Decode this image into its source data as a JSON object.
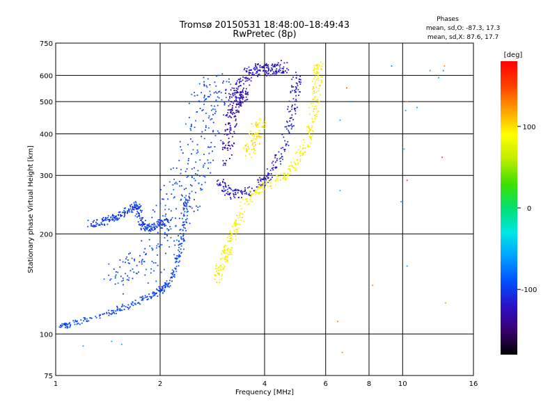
{
  "chart_data": {
    "type": "scatter",
    "title": "Tromsø 20150531 18:48:00–18:49:43",
    "subtitle": "RwPretec (8p)",
    "xlabel": "Frequency [MHz]",
    "ylabel": "Stationary phase Virtual Height [km]",
    "x_scale": "log",
    "y_scale": "log",
    "xlim": [
      1,
      16
    ],
    "ylim": [
      75,
      750
    ],
    "x_ticks": [
      1,
      2,
      4,
      6,
      8,
      10,
      16
    ],
    "x_tick_labels": [
      "1",
      "2",
      "4",
      "6",
      "8",
      "10",
      "16"
    ],
    "y_ticks": [
      75,
      100,
      200,
      300,
      400,
      500,
      600,
      750
    ],
    "y_tick_labels": [
      "75",
      "100",
      "200",
      "300",
      "400",
      "500",
      "600",
      "750"
    ],
    "grid": true,
    "phase_stats": {
      "heading": "Phases",
      "o_line": "mean, sd,O: -87.3, 17.3",
      "x_line": "mean, sd,X: 87.6, 17.7"
    },
    "colorbar": {
      "label": "[deg]",
      "range": [
        -180,
        180
      ],
      "ticks": [
        100,
        0,
        -100
      ],
      "tick_labels": [
        "100",
        "0",
        "-100"
      ],
      "colors": [
        "#000000",
        "#3a0070",
        "#2a10c8",
        "#0050ff",
        "#00a0ff",
        "#00e6e6",
        "#00e070",
        "#40e000",
        "#c0ec00",
        "#ffff00",
        "#ffa000",
        "#ff4000",
        "#ff0000"
      ]
    },
    "traces": [
      {
        "name_note": "low-frequency O trace",
        "phase": -95,
        "spread": 0.01,
        "points": [
          [
            1.03,
            105
          ],
          [
            1.1,
            107
          ],
          [
            1.3,
            112
          ],
          [
            1.5,
            118
          ],
          [
            1.7,
            124
          ],
          [
            1.9,
            130
          ],
          [
            2.0,
            135
          ],
          [
            2.1,
            140
          ],
          [
            2.2,
            155
          ],
          [
            2.3,
            180
          ],
          [
            2.35,
            220
          ],
          [
            2.4,
            260
          ]
        ]
      },
      {
        "name_note": "sporadic low trace",
        "phase": -100,
        "spread": 0.012,
        "points": [
          [
            1.25,
            215
          ],
          [
            1.35,
            216
          ],
          [
            1.45,
            222
          ],
          [
            1.55,
            228
          ],
          [
            1.65,
            238
          ],
          [
            1.72,
            245
          ],
          [
            1.75,
            220
          ],
          [
            1.8,
            210
          ],
          [
            1.9,
            208
          ],
          [
            2.0,
            215
          ],
          [
            2.1,
            218
          ]
        ]
      },
      {
        "name_note": "diffuse spread F",
        "phase": -95,
        "spread": 0.06,
        "points": [
          [
            1.4,
            145
          ],
          [
            1.6,
            150
          ],
          [
            1.8,
            160
          ],
          [
            2.0,
            180
          ],
          [
            2.1,
            210
          ],
          [
            2.2,
            240
          ],
          [
            2.3,
            260
          ],
          [
            2.4,
            290
          ],
          [
            2.5,
            320
          ],
          [
            2.6,
            380
          ],
          [
            2.7,
            440
          ],
          [
            2.8,
            500
          ],
          [
            2.9,
            540
          ],
          [
            3.0,
            560
          ]
        ]
      },
      {
        "name_note": "F2 O mode",
        "phase": -115,
        "spread": 0.015,
        "points": [
          [
            3.0,
            290
          ],
          [
            3.1,
            270
          ],
          [
            3.3,
            262
          ],
          [
            3.6,
            270
          ],
          [
            4.0,
            290
          ],
          [
            4.3,
            320
          ],
          [
            4.6,
            380
          ],
          [
            4.8,
            460
          ],
          [
            4.9,
            540
          ],
          [
            5.0,
            610
          ]
        ]
      },
      {
        "name_note": "F2 upper O",
        "phase": -120,
        "spread": 0.02,
        "points": [
          [
            3.2,
            520
          ],
          [
            3.4,
            560
          ],
          [
            3.6,
            610
          ],
          [
            3.8,
            630
          ],
          [
            4.0,
            625
          ],
          [
            4.2,
            620
          ],
          [
            4.4,
            630
          ],
          [
            4.6,
            640
          ]
        ]
      },
      {
        "name_note": "inner O cusp",
        "phase": -130,
        "spread": 0.02,
        "points": [
          [
            3.1,
            330
          ],
          [
            3.15,
            380
          ],
          [
            3.2,
            430
          ],
          [
            3.25,
            480
          ],
          [
            3.3,
            500
          ],
          [
            3.4,
            520
          ],
          [
            3.5,
            530
          ]
        ]
      },
      {
        "name_note": "F2 X mode",
        "phase": 92,
        "spread": 0.015,
        "points": [
          [
            2.9,
            145
          ],
          [
            3.0,
            160
          ],
          [
            3.1,
            175
          ],
          [
            3.2,
            190
          ],
          [
            3.3,
            210
          ],
          [
            3.5,
            245
          ],
          [
            3.8,
            270
          ],
          [
            4.2,
            285
          ],
          [
            4.6,
            300
          ],
          [
            5.0,
            330
          ],
          [
            5.3,
            380
          ],
          [
            5.5,
            440
          ],
          [
            5.6,
            520
          ],
          [
            5.7,
            600
          ],
          [
            5.75,
            650
          ]
        ]
      },
      {
        "name_note": "X cusp upper",
        "phase": 95,
        "spread": 0.02,
        "points": [
          [
            3.6,
            350
          ],
          [
            3.7,
            380
          ],
          [
            3.8,
            410
          ],
          [
            3.9,
            440
          ]
        ]
      },
      {
        "name_note": "scattered noise",
        "phase": -60,
        "spread": 0.0,
        "points": [
          [
            6.6,
            270
          ],
          [
            6.6,
            440
          ],
          [
            7.1,
            500
          ],
          [
            9.3,
            640
          ],
          [
            9.9,
            250
          ],
          [
            10.1,
            360
          ],
          [
            10.2,
            470
          ],
          [
            10.3,
            160
          ],
          [
            11.0,
            480
          ],
          [
            12.0,
            620
          ],
          [
            12.7,
            590
          ],
          [
            13.1,
            620
          ],
          [
            1.2,
            92
          ],
          [
            1.45,
            95
          ],
          [
            1.55,
            93
          ]
        ]
      },
      {
        "name_note": "scattered warm noise",
        "phase": 140,
        "spread": 0.0,
        "points": [
          [
            6.5,
            109
          ],
          [
            6.7,
            88
          ],
          [
            8.2,
            140
          ],
          [
            10.3,
            290
          ],
          [
            13.0,
            340
          ],
          [
            13.3,
            124
          ],
          [
            6.9,
            550
          ],
          [
            10.3,
            500
          ],
          [
            12.0,
            500
          ],
          [
            13.2,
            640
          ]
        ]
      }
    ]
  }
}
